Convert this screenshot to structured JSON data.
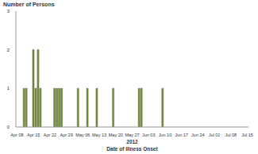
{
  "chart_data": {
    "type": "bar",
    "y_label": "Number of Persons",
    "x_label": "Date of Illness Onset",
    "annotations": [
      "2012"
    ],
    "categories": [
      "Apr 08",
      null,
      null,
      null,
      null,
      null,
      null,
      "Apr 15",
      null,
      null,
      null,
      null,
      null,
      null,
      "Apr 22",
      null,
      null,
      null,
      null,
      null,
      null,
      "Apr 29",
      null,
      null,
      null,
      null,
      null,
      null,
      "May 06",
      null,
      null,
      null,
      null,
      null,
      null,
      "May 13",
      null,
      null,
      null,
      null,
      null,
      null,
      "May 20",
      null,
      null,
      null,
      null,
      null,
      null,
      "May 27",
      null,
      null,
      null,
      null,
      null,
      null,
      "Jun 03",
      null,
      null,
      null,
      null,
      null,
      null,
      "Jun 10",
      null,
      null,
      null,
      null,
      null,
      null,
      "Jun 17",
      null,
      null,
      null,
      null,
      null,
      null,
      "Jun 24",
      null,
      null,
      null,
      null,
      null,
      null,
      "Jul 01",
      null,
      null,
      null,
      null,
      null,
      null,
      "Jul 08",
      null,
      null,
      null,
      null,
      null,
      null,
      "Jul 15"
    ],
    "values": [
      0,
      0,
      0,
      1,
      1,
      0,
      0,
      2,
      1,
      2,
      1,
      0,
      0,
      0,
      0,
      0,
      1,
      1,
      1,
      1,
      0,
      0,
      0,
      0,
      0,
      0,
      1,
      0,
      0,
      0,
      1,
      0,
      0,
      0,
      1,
      0,
      0,
      0,
      0,
      0,
      0,
      1,
      0,
      0,
      0,
      0,
      0,
      0,
      0,
      0,
      0,
      0,
      1,
      1,
      0,
      0,
      0,
      0,
      0,
      0,
      0,
      0,
      1,
      0,
      0,
      0,
      0,
      0,
      0,
      0,
      0,
      0,
      0,
      0,
      0,
      0,
      0,
      0,
      0,
      0,
      0,
      0,
      0,
      0,
      0,
      0,
      0,
      0,
      0,
      0,
      0,
      0,
      0,
      0,
      0,
      0,
      0,
      0,
      0
    ],
    "color": "#77933c",
    "ylim": [
      0,
      3
    ],
    "yticks": [
      0,
      1,
      2,
      3
    ],
    "grid": false
  }
}
